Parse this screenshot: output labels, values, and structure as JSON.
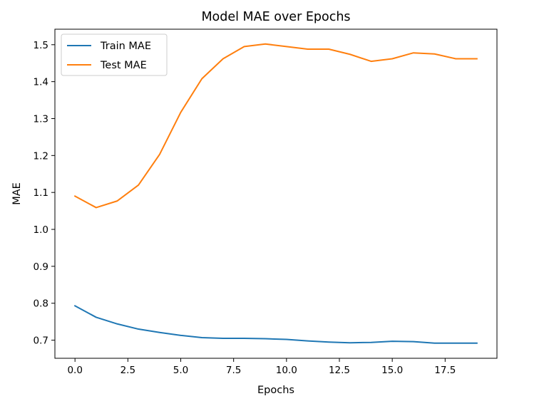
{
  "chart_data": {
    "type": "line",
    "title": "Model MAE over Epochs",
    "xlabel": "Epochs",
    "ylabel": "MAE",
    "xlim": [
      -0.95,
      19.95
    ],
    "ylim": [
      0.651,
      1.542
    ],
    "xticks": [
      0,
      2.5,
      5,
      7.5,
      10,
      12.5,
      15,
      17.5
    ],
    "xtick_labels": [
      "0.0",
      "2.5",
      "5.0",
      "7.5",
      "10.0",
      "12.5",
      "15.0",
      "17.5"
    ],
    "yticks": [
      0.7,
      0.8,
      0.9,
      1.0,
      1.1,
      1.2,
      1.3,
      1.4,
      1.5
    ],
    "ytick_labels": [
      "0.7",
      "0.8",
      "0.9",
      "1.0",
      "1.1",
      "1.2",
      "1.3",
      "1.4",
      "1.5"
    ],
    "grid": false,
    "legend_position": "top-left",
    "x": [
      0,
      1,
      2,
      3,
      4,
      5,
      6,
      7,
      8,
      9,
      10,
      11,
      12,
      13,
      14,
      15,
      16,
      17,
      18,
      19
    ],
    "series": [
      {
        "name": "Train MAE",
        "color": "#1f77b4",
        "values": [
          0.793,
          0.762,
          0.744,
          0.73,
          0.721,
          0.713,
          0.707,
          0.705,
          0.705,
          0.704,
          0.702,
          0.698,
          0.695,
          0.693,
          0.694,
          0.697,
          0.696,
          0.692,
          0.692,
          0.692
        ]
      },
      {
        "name": "Test MAE",
        "color": "#ff7f0e",
        "values": [
          1.09,
          1.059,
          1.077,
          1.12,
          1.203,
          1.317,
          1.408,
          1.462,
          1.495,
          1.502,
          1.495,
          1.488,
          1.488,
          1.474,
          1.455,
          1.462,
          1.478,
          1.475,
          1.462,
          1.462
        ]
      }
    ]
  }
}
